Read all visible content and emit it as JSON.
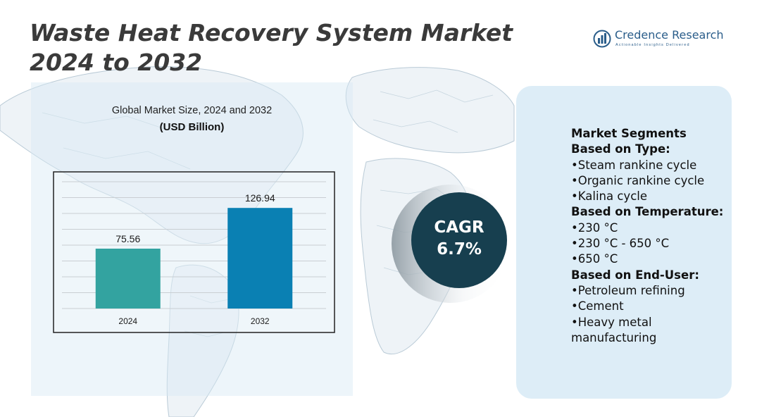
{
  "title": "Waste Heat Recovery System Market 2024 to 2032",
  "logo": {
    "name": "Credence Research",
    "tagline": "Actionable Insights Delivered"
  },
  "chart_data": {
    "type": "bar",
    "title": "Global Market Size, 2024 and 2032",
    "subtitle": "(USD Billion)",
    "categories": [
      "2024",
      "2032"
    ],
    "values": [
      75.56,
      126.94
    ],
    "value_labels": [
      "75.56",
      "126.94"
    ],
    "colors": [
      "#33a3a0",
      "#0a80b3"
    ],
    "ylim": [
      0,
      160
    ],
    "grid": true,
    "xlabel": "",
    "ylabel": ""
  },
  "cagr": {
    "label": "CAGR",
    "value": "6.7%"
  },
  "segments": {
    "heading": "Market Segments",
    "groups": [
      {
        "title": "Based on Type:",
        "items": [
          "•Steam rankine cycle",
          "•Organic rankine cycle",
          "•Kalina cycle"
        ]
      },
      {
        "title": "Based on Temperature:",
        "items": [
          "•230 °C",
          "•230 °C - 650 °C",
          "•650 °C"
        ]
      },
      {
        "title": "Based on End-User:",
        "items": [
          "•Petroleum refining",
          "•Cement",
          "•Heavy metal manufacturing"
        ]
      }
    ]
  },
  "colors": {
    "title": "#3a3a3a",
    "brand": "#2a5d8a",
    "cagr_circle": "#173f4f"
  }
}
